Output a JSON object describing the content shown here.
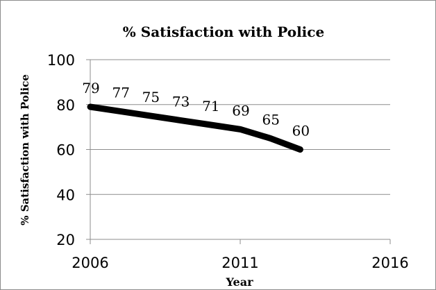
{
  "chart_data": {
    "type": "line",
    "title": "% Satisfaction with Police",
    "xlabel": "Year",
    "ylabel": "% Satisfaction with Police",
    "xlim": [
      2006,
      2016
    ],
    "ylim": [
      20,
      100
    ],
    "x_ticks": [
      2006,
      2011,
      2016
    ],
    "y_ticks": [
      20,
      40,
      60,
      80,
      100
    ],
    "grid": "horizontal",
    "legend": "none",
    "line_color": "#000000",
    "series": [
      {
        "x": [
          2006,
          2007,
          2008,
          2009,
          2010,
          2011,
          2012,
          2013
        ],
        "values": [
          79,
          77,
          75,
          73,
          71,
          69,
          65,
          60
        ]
      }
    ]
  }
}
